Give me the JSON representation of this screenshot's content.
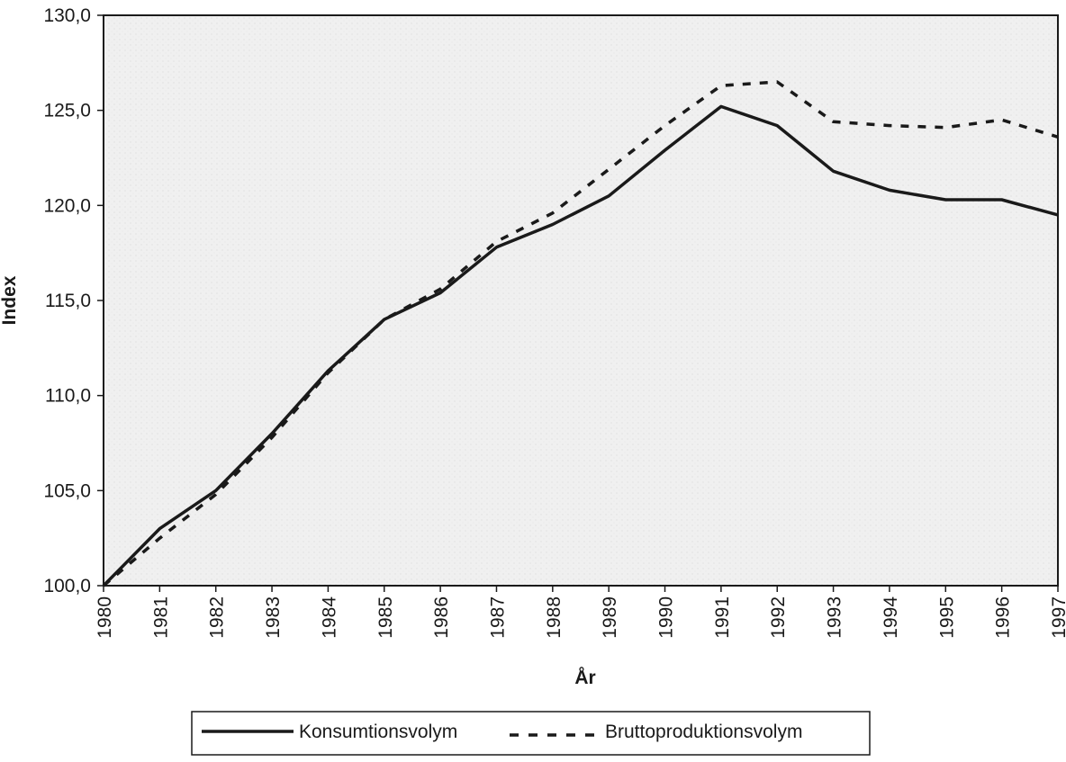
{
  "chart_data": {
    "type": "line",
    "title": "",
    "xlabel": "År",
    "ylabel": "Index",
    "x": [
      "1980",
      "1981",
      "1982",
      "1983",
      "1984",
      "1985",
      "1986",
      "1987",
      "1988",
      "1989",
      "1990",
      "1991",
      "1992",
      "1993",
      "1994",
      "1995",
      "1996",
      "1997"
    ],
    "ylim": [
      100,
      130
    ],
    "yticks": [
      "100,0",
      "105,0",
      "110,0",
      "115,0",
      "120,0",
      "125,0",
      "130,0"
    ],
    "grid": false,
    "legend_position": "bottom",
    "series": [
      {
        "name": "Konsumtionsvolym",
        "style": "solid",
        "color": "#1a1a1a",
        "values": [
          100.0,
          103.0,
          105.0,
          108.0,
          111.3,
          114.0,
          115.4,
          117.8,
          119.0,
          120.5,
          122.9,
          125.2,
          124.2,
          121.8,
          120.8,
          120.3,
          120.3,
          119.5
        ]
      },
      {
        "name": "Bruttoproduktionsvolym",
        "style": "dashed",
        "color": "#1a1a1a",
        "values": [
          100.0,
          102.5,
          104.8,
          107.8,
          111.2,
          114.0,
          115.6,
          118.1,
          119.6,
          121.9,
          124.2,
          126.3,
          126.5,
          124.4,
          124.2,
          124.1,
          124.5,
          123.6
        ]
      }
    ]
  }
}
